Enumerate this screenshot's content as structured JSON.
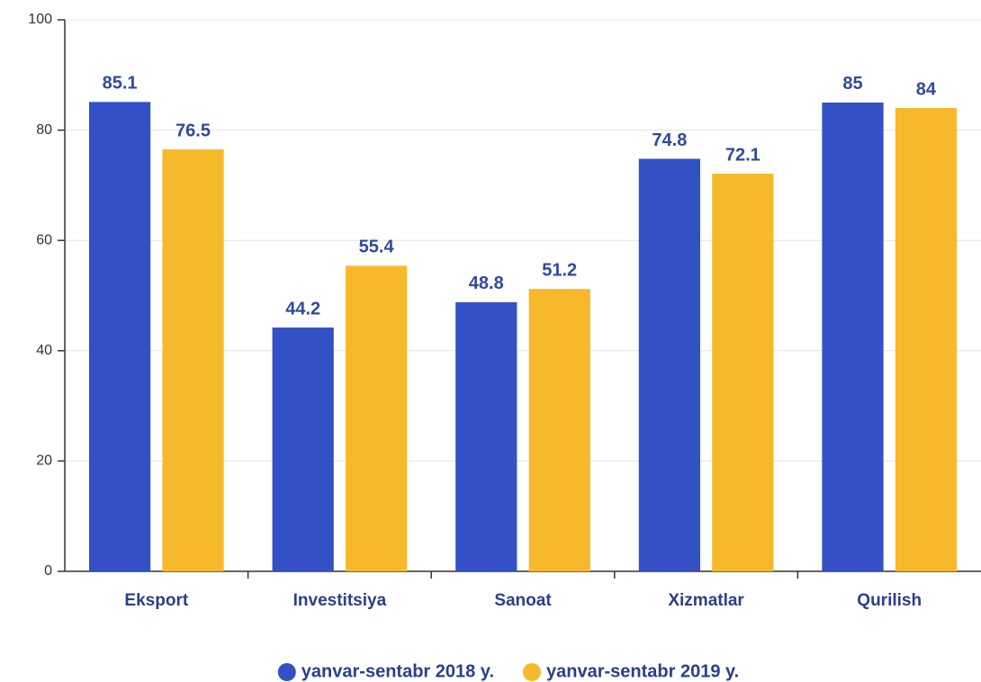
{
  "chart_data": {
    "type": "bar",
    "categories": [
      "Eksport",
      "Investitsiya",
      "Sanoat",
      "Xizmatlar",
      "Qurilish"
    ],
    "series": [
      {
        "name": "yanvar-sentabr 2018 y.",
        "color": "#3350c4",
        "values": [
          85.1,
          44.2,
          48.8,
          74.8,
          85
        ]
      },
      {
        "name": "yanvar-sentabr 2019 y.",
        "color": "#f6b92b",
        "values": [
          76.5,
          55.4,
          51.2,
          72.1,
          84
        ]
      }
    ],
    "ylim": [
      0,
      100
    ],
    "yticks": [
      0,
      20,
      40,
      60,
      80,
      100
    ],
    "grid": true,
    "legend": "bottom"
  }
}
